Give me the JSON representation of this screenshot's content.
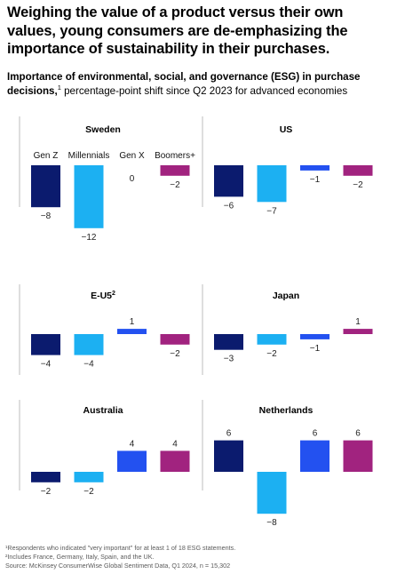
{
  "title": "Weighing the value of a product versus their own values, young consumers are de-emphasizing the importance of sustainability in their purchases.",
  "subtitle": {
    "bold": "Importance of environmental, social, and governance (ESG) in purchase decisions,",
    "sup": "1",
    "rest": " percentage-point shift since Q2 2023 for advanced economies"
  },
  "colors": {
    "gen_z": "#0b1b6e",
    "millennials": "#1cb0f2",
    "gen_x": "#2351f0",
    "boomers": "#a1237f",
    "baseline": "#000000",
    "divider": "#bdbdbd"
  },
  "chart_data": [
    {
      "type": "bar",
      "title": "Sweden",
      "categories": [
        "Gen Z",
        "Millennials",
        "Gen X",
        "Boomers+"
      ],
      "values": [
        -8,
        -12,
        0,
        -2
      ]
    },
    {
      "type": "bar",
      "title": "US",
      "categories": [
        "Gen Z",
        "Millennials",
        "Gen X",
        "Boomers+"
      ],
      "values": [
        -6,
        -7,
        -1,
        -2
      ]
    },
    {
      "type": "bar",
      "title": "E-U5",
      "title_sup": "2",
      "categories": [
        "Gen Z",
        "Millennials",
        "Gen X",
        "Boomers+"
      ],
      "values": [
        -4,
        -4,
        1,
        -2
      ]
    },
    {
      "type": "bar",
      "title": "Japan",
      "categories": [
        "Gen Z",
        "Millennials",
        "Gen X",
        "Boomers+"
      ],
      "values": [
        -3,
        -2,
        -1,
        1
      ]
    },
    {
      "type": "bar",
      "title": "Australia",
      "categories": [
        "Gen Z",
        "Millennials",
        "Gen X",
        "Boomers+"
      ],
      "values": [
        -2,
        -2,
        4,
        4
      ]
    },
    {
      "type": "bar",
      "title": "Netherlands",
      "categories": [
        "Gen Z",
        "Millennials",
        "Gen X",
        "Boomers+"
      ],
      "values": [
        6,
        -8,
        6,
        6
      ]
    }
  ],
  "footnotes": {
    "note1": "¹Respondents who indicated \"very important\" for at least 1 of 18 ESG statements.",
    "note2": "²Includes France, Germany, Italy, Spain, and the UK.",
    "source": "Source: McKinsey ConsumerWise Global Sentiment Data, Q1 2024, n = 15,302"
  }
}
